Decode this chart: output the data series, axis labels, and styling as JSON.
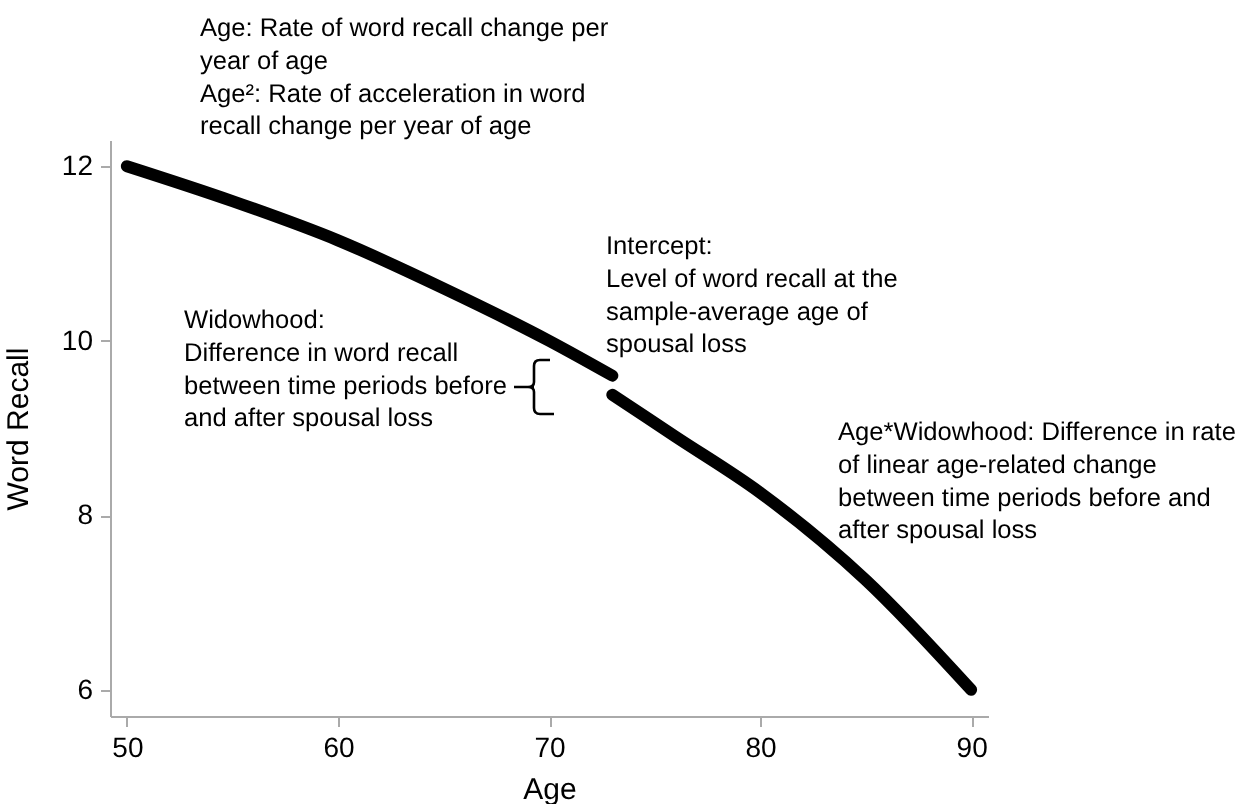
{
  "chart_data": {
    "type": "line",
    "xlabel": "Age",
    "ylabel": "Word Recall",
    "xlim": [
      49.2,
      90.8
    ],
    "xticks": [
      50,
      60,
      70,
      80,
      90
    ],
    "ylim": [
      5.7,
      12.3
    ],
    "yticks": [
      6,
      8,
      10,
      12
    ],
    "series": [
      {
        "color": "#000000",
        "x": [
          50,
          55,
          60,
          65,
          70,
          73
        ],
        "values": [
          12.0,
          11.6,
          11.15,
          10.6,
          10.0,
          9.6
        ]
      },
      {
        "color": "#000000",
        "x": [
          73,
          76,
          80,
          85,
          90
        ],
        "values": [
          9.38,
          8.9,
          8.26,
          7.26,
          6.0
        ]
      }
    ],
    "annotations": [
      "Age: Rate of word recall change per\nyear of age\nAge²: Rate of acceleration in word\nrecall change per year of age",
      "Widowhood:\nDifference in word recall\nbetween time periods before\nand after spousal loss",
      "Intercept:\nLevel of word recall at the\nsample-average age of\nspousal loss",
      "Age*Widowhood: Difference in rate\nof linear age-related change\nbetween time periods before and\nafter spousal loss"
    ]
  }
}
